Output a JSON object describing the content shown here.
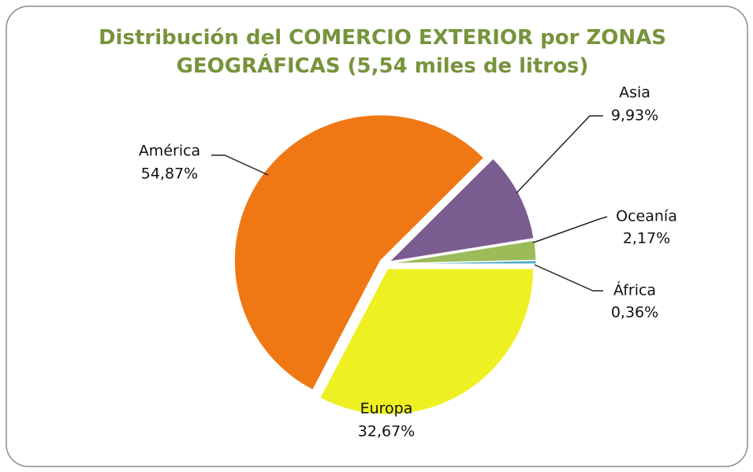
{
  "chart_data": {
    "type": "pie",
    "title": "Distribución del COMERCIO EXTERIOR por ZONAS GEOGRÁFICAS (5,54 miles de litros)",
    "categories": [
      "Europa",
      "América",
      "Asia",
      "Oceanía",
      "África"
    ],
    "values": [
      32.67,
      54.87,
      9.93,
      2.17,
      0.36
    ],
    "value_labels": [
      "32,67%",
      "54,87%",
      "9,93%",
      "2,17%",
      "0,36%"
    ],
    "colors": [
      "#eef022",
      "#f07814",
      "#7b5c90",
      "#9cbb59",
      "#4bacc6"
    ]
  }
}
